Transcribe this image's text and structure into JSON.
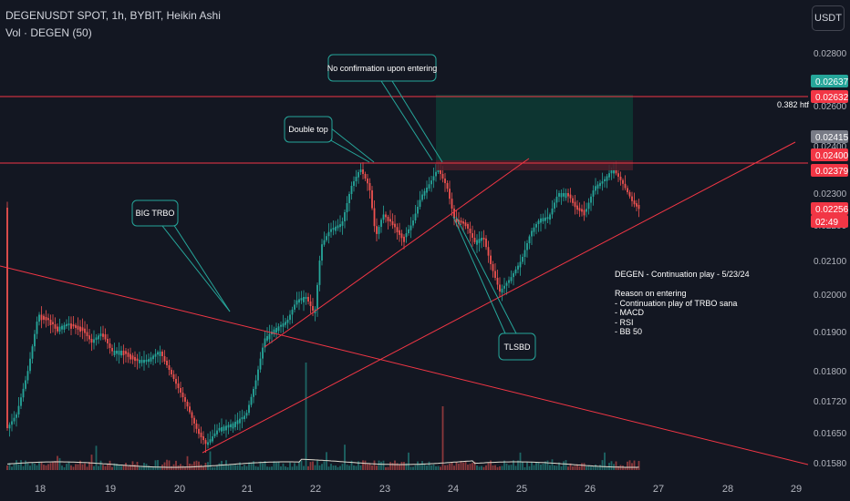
{
  "header": {
    "symbol_line": "DEGENUSDT SPOT, 1h, BYBIT, Heikin Ashi",
    "volume_line": "Vol · DEGEN (50)"
  },
  "currency_button": "USDT",
  "htf_label": "0.382 htf",
  "note_text": "DEGEN - Continuation play - 5/23/24\n\nReason on entering\n- Continuation play of TRBO sana\n- MACD\n- RSI\n- BB 50",
  "chart_data": {
    "type": "candlestick",
    "price_axis": {
      "ticks": [
        "0.02800",
        "0.02600",
        "0.02400",
        "0.02300",
        "0.02200",
        "0.02100",
        "0.02000",
        "0.01900",
        "0.01800",
        "0.01720",
        "0.01650",
        "0.01580"
      ]
    },
    "time_axis": {
      "ticks": [
        "18",
        "19",
        "20",
        "21",
        "22",
        "23",
        "24",
        "25",
        "26",
        "27",
        "28",
        "29"
      ]
    },
    "price_badges": [
      {
        "text": "0.02637",
        "bg": "#26a69a"
      },
      {
        "text": "0.02632",
        "bg": "#f23645"
      },
      {
        "text": "0.02415",
        "bg": "#787b86"
      },
      {
        "text": "0.02400",
        "bg": "#f23645"
      },
      {
        "text": "0.02379",
        "bg": "#f23645"
      },
      {
        "text": "0.02256",
        "bg": "#f23645"
      },
      {
        "text": "02:49",
        "bg": "#f23645"
      }
    ],
    "annotations": [
      "No confirmation upon entering",
      "Double top",
      "BIG TRBO",
      "TLSBD"
    ],
    "colors": {
      "up": "#26a69a",
      "down": "#ef5350",
      "line": "#f23645",
      "zone": "#0d3b34"
    }
  }
}
